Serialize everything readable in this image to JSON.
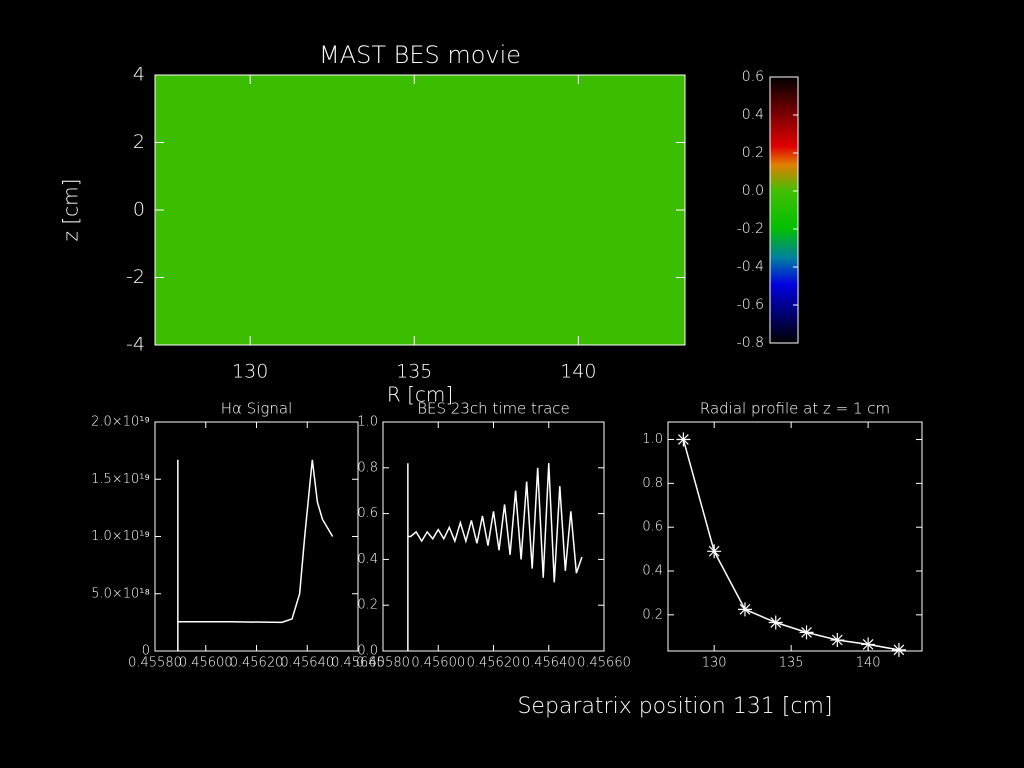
{
  "chart_data": [
    {
      "type": "heatmap",
      "title": "MAST BES movie",
      "xlabel": "R [cm]",
      "ylabel": "z [cm]",
      "xlim": [
        127.1,
        143.25
      ],
      "xticks": [
        130,
        135,
        140
      ],
      "ylim": [
        -4,
        4
      ],
      "yticks": [
        -4,
        -2,
        0,
        2,
        4
      ],
      "values": [
        [
          -0.05
        ]
      ],
      "color": "#3cbe00",
      "colorbar": {
        "lim": [
          -0.8,
          0.6
        ],
        "ticks": [
          0.6,
          0.4,
          0.2,
          {
            "value": 0,
            "label": "0.0"
          },
          -0.2,
          -0.4,
          -0.6,
          -0.8
        ]
      }
    },
    {
      "type": "line",
      "title": "Hα Signal",
      "color": "#ffffff",
      "xlim": [
        0.4558,
        0.4566
      ],
      "xticks": [
        {
          "value": 0.4558,
          "label": "0.45580"
        },
        {
          "value": 0.456,
          "label": "0.45600"
        },
        {
          "value": 0.4562,
          "label": "0.45620"
        },
        {
          "value": 0.4564,
          "label": "0.45640"
        },
        {
          "value": 0.4566,
          "label": "0.45660"
        }
      ],
      "ylim": [
        0,
        2e+19
      ],
      "yticks": [
        0,
        {
          "value": 5e+18,
          "label": "5.0×10¹⁸"
        },
        {
          "value": 1e+19,
          "label": "1.0×10¹⁹"
        },
        {
          "value": 1.5e+19,
          "label": "1.5×10¹⁹"
        },
        {
          "value": 2e+19,
          "label": "2.0×10¹⁹"
        }
      ],
      "x": [
        0.45589,
        0.45589,
        0.45589,
        0.4561,
        0.4563,
        0.45634,
        0.45637,
        0.45639,
        0.45641,
        0.45642,
        0.45644,
        0.45646,
        0.4565
      ],
      "values": [
        0,
        1.67e+19,
        2.55e+18,
        2.55e+18,
        2.5e+18,
        2.8e+18,
        5e+18,
        1e+19,
        1.45e+19,
        1.67e+19,
        1.3e+19,
        1.15e+19,
        1e+19
      ]
    },
    {
      "type": "line",
      "title": "BES 23ch time trace",
      "color": "#ffffff",
      "xlim": [
        0.4558,
        0.4566
      ],
      "xticks": [
        {
          "value": 0.4558,
          "label": "0.45580"
        },
        {
          "value": 0.456,
          "label": "0.45600"
        },
        {
          "value": 0.4562,
          "label": "0.45620"
        },
        {
          "value": 0.4564,
          "label": "0.45640"
        },
        {
          "value": 0.4566,
          "label": "0.45660"
        }
      ],
      "ylim": [
        0,
        1
      ],
      "yticks": [
        {
          "value": 0,
          "label": "0.0"
        },
        0.2,
        0.4,
        0.6,
        0.8,
        {
          "value": 1,
          "label": "1.0"
        }
      ],
      "x": [
        0.45589,
        0.45589,
        0.45589,
        0.4559,
        0.45592,
        0.45594,
        0.45596,
        0.45598,
        0.456,
        0.45602,
        0.45604,
        0.45606,
        0.45608,
        0.4561,
        0.45612,
        0.45614,
        0.45616,
        0.45618,
        0.4562,
        0.45622,
        0.45624,
        0.45626,
        0.45628,
        0.4563,
        0.45632,
        0.45634,
        0.45636,
        0.45638,
        0.4564,
        0.45642,
        0.45644,
        0.45646,
        0.45648,
        0.4565,
        0.45652
      ],
      "values": [
        0,
        0.82,
        0.5,
        0.5,
        0.52,
        0.48,
        0.52,
        0.49,
        0.53,
        0.49,
        0.54,
        0.48,
        0.56,
        0.48,
        0.57,
        0.47,
        0.59,
        0.46,
        0.61,
        0.44,
        0.64,
        0.42,
        0.7,
        0.4,
        0.74,
        0.36,
        0.8,
        0.32,
        0.82,
        0.3,
        0.72,
        0.35,
        0.61,
        0.34,
        0.41
      ]
    },
    {
      "type": "line",
      "title": "Radial profile at z = 1 cm",
      "color": "#ffffff",
      "marker": "star",
      "xlim": [
        127,
        143.5
      ],
      "xticks": [
        130,
        135,
        140
      ],
      "ylim": [
        0.035,
        1.08
      ],
      "yticks": [
        0.2,
        0.4,
        0.6,
        0.8,
        {
          "value": 1,
          "label": "1.0"
        }
      ],
      "x": [
        128,
        130,
        132,
        134,
        136,
        138,
        140,
        142
      ],
      "values": [
        1.0,
        0.49,
        0.225,
        0.165,
        0.12,
        0.085,
        0.065,
        0.04
      ]
    }
  ],
  "footer": "Separatrix position 131 [cm]"
}
